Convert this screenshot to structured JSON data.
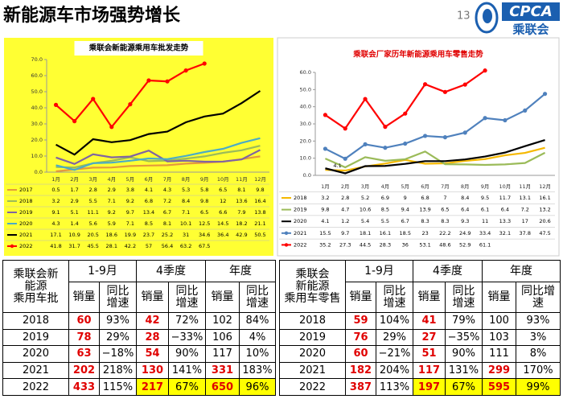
{
  "header": {
    "title": "新能源车市场强势增长",
    "page": "13",
    "logo": "CPCA",
    "logo_sub": "乘联会"
  },
  "chart_data": [
    {
      "type": "line",
      "title": "乘联会新能源乘用车批发走势",
      "categories": [
        "1月",
        "2月",
        "3月",
        "4月",
        "5月",
        "6月",
        "7月",
        "8月",
        "9月",
        "10月",
        "11月",
        "12月"
      ],
      "ylim": [
        0,
        70
      ],
      "yticks": [
        {
          "value": 0,
          "label": "0.0"
        },
        {
          "value": 10,
          "label": "10.0"
        },
        {
          "value": 20,
          "label": "20.0"
        },
        {
          "value": 30,
          "label": "30.0"
        },
        {
          "value": 40,
          "label": "40.0"
        },
        {
          "value": 50,
          "label": "50.0"
        },
        {
          "value": 60,
          "label": "60.0"
        },
        {
          "value": 70,
          "label": "70.0"
        }
      ],
      "series": [
        {
          "name": "2017",
          "color": "#e59a3c",
          "marker": false,
          "values": [
            0.5,
            1.7,
            2.8,
            2.9,
            3.8,
            4.1,
            4.3,
            5.3,
            5.8,
            6.5,
            8.1,
            9.8
          ]
        },
        {
          "name": "2018",
          "color": "#9bbb59",
          "marker": false,
          "values": [
            3.2,
            2.9,
            5.5,
            7.1,
            9.2,
            6.8,
            7.2,
            8.4,
            9.8,
            12.0,
            13.6,
            16.4
          ]
        },
        {
          "name": "2019",
          "color": "#8064a2",
          "marker": false,
          "values": [
            9.1,
            5.1,
            11.1,
            9.2,
            9.7,
            13.4,
            6.7,
            7.1,
            6.5,
            6.6,
            7.9,
            13.8
          ]
        },
        {
          "name": "2020",
          "color": "#4bacc6",
          "marker": false,
          "values": [
            4.3,
            1.4,
            5.6,
            5.9,
            7.1,
            8.5,
            8.1,
            10.1,
            12.5,
            14.5,
            18.2,
            21.1
          ]
        },
        {
          "name": "2021",
          "color": "#000000",
          "marker": false,
          "values": [
            17.1,
            10.9,
            20.5,
            18.6,
            19.9,
            23.7,
            25.2,
            31.0,
            34.6,
            36.4,
            42.9,
            50.5
          ]
        },
        {
          "name": "2022",
          "color": "#ff0000",
          "marker": true,
          "values": [
            41.8,
            31.7,
            45.5,
            28.1,
            42.2,
            57.0,
            56.4,
            63.2,
            67.5,
            null,
            null,
            null
          ]
        }
      ]
    },
    {
      "type": "line",
      "title": "乘联会厂家历年新能源乘用车零售走势",
      "categories": [
        "1月",
        "2月",
        "3月",
        "4月",
        "5月",
        "6月",
        "7月",
        "8月",
        "9月",
        "10月",
        "11月",
        "12月"
      ],
      "ylim": [
        0,
        60
      ],
      "yticks": [
        {
          "value": 0,
          "label": "0.0"
        },
        {
          "value": 10,
          "label": "10.0"
        },
        {
          "value": 20,
          "label": "20.0"
        },
        {
          "value": 30,
          "label": "30.0"
        },
        {
          "value": 40,
          "label": "40.0"
        },
        {
          "value": 50,
          "label": "50.0"
        },
        {
          "value": 60,
          "label": "60.0"
        }
      ],
      "annotation": "4.1",
      "series": [
        {
          "name": "2018",
          "color": "#f5b800",
          "marker": false,
          "values": [
            3.2,
            2.8,
            5.2,
            6.9,
            9.0,
            6.8,
            7.0,
            8.4,
            9.5,
            11.7,
            13.1,
            16.1
          ]
        },
        {
          "name": "2019",
          "color": "#9bbb59",
          "marker": false,
          "values": [
            9.8,
            4.7,
            10.6,
            8.5,
            9.4,
            13.9,
            6.5,
            6.4,
            6.1,
            6.4,
            7.2,
            13.2
          ]
        },
        {
          "name": "2020",
          "color": "#000000",
          "marker": false,
          "values": [
            4.1,
            1.2,
            5.4,
            5.5,
            6.7,
            8.3,
            8.3,
            9.3,
            11.0,
            13.3,
            17.0,
            20.6
          ]
        },
        {
          "name": "2021",
          "color": "#4f81bd",
          "marker": true,
          "values": [
            15.5,
            9.7,
            18.1,
            16.1,
            18.5,
            23.0,
            22.2,
            24.9,
            33.4,
            32.1,
            37.8,
            47.5
          ]
        },
        {
          "name": "2022",
          "color": "#ff0000",
          "marker": true,
          "values": [
            35.2,
            27.3,
            44.5,
            28.3,
            36.0,
            53.1,
            48.6,
            52.9,
            61.1,
            null,
            null,
            null
          ]
        }
      ]
    }
  ],
  "tables": [
    {
      "corner": [
        "乘联会新",
        "能源",
        "乘用车批"
      ],
      "groups": [
        "1-9月",
        "4季度",
        "年度"
      ],
      "subheaders": [
        "销量",
        "同比增速",
        "销量",
        "同比增速",
        "销量",
        "同比增速"
      ],
      "rows": [
        [
          "2018",
          "60",
          "93%",
          "42",
          "72%",
          "102",
          "84%"
        ],
        [
          "2019",
          "78",
          "29%",
          "28",
          "−33%",
          "106",
          "4%"
        ],
        [
          "2020",
          "63",
          "−18%",
          "54",
          "90%",
          "117",
          "10%"
        ],
        [
          "2021",
          "202",
          "218%",
          "130",
          "141%",
          "331",
          "183%"
        ],
        [
          "2022",
          "433",
          "115%",
          "217",
          "67%",
          "650",
          "96%"
        ]
      ]
    },
    {
      "corner": [
        "乘联会",
        "新能源",
        "乘用车零售"
      ],
      "groups": [
        "1-9月",
        "4季度",
        "年度"
      ],
      "subheaders": [
        "销量",
        "同比增速",
        "销量",
        "同比增速",
        "销量",
        "同比增速"
      ],
      "rows": [
        [
          "2018",
          "59",
          "104%",
          "41",
          "79%",
          "100",
          "93%"
        ],
        [
          "2019",
          "76",
          "29%",
          "27",
          "−35%",
          "103",
          "3%"
        ],
        [
          "2020",
          "60",
          "−21%",
          "51",
          "90%",
          "111",
          "8%"
        ],
        [
          "2021",
          "182",
          "204%",
          "117",
          "131%",
          "299",
          "170%"
        ],
        [
          "2022",
          "387",
          "113%",
          "197",
          "67%",
          "595",
          "99%"
        ]
      ]
    }
  ]
}
